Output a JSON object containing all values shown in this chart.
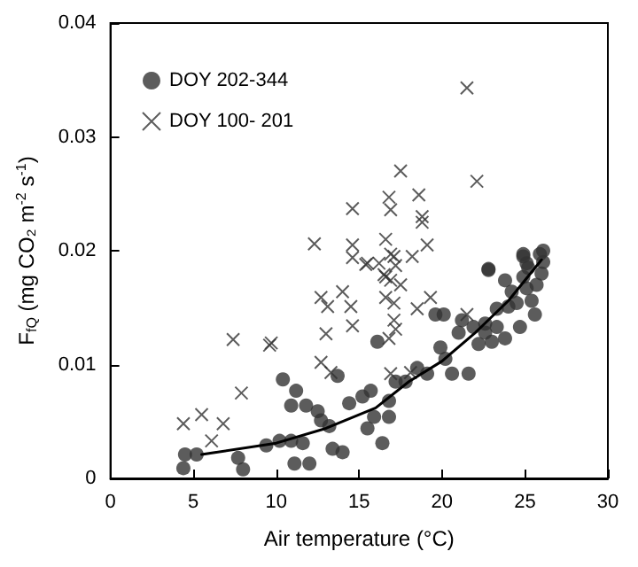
{
  "chart_data": {
    "type": "scatter",
    "xlabel": "Air temperature (°C)",
    "ylabel": "F$_{fQ}$ (mg CO₂ m$^{-2}$ s$^{-1}$)",
    "xlim": [
      0,
      30
    ],
    "xticks": [
      0,
      5,
      10,
      15,
      20,
      25,
      30
    ],
    "ylim": [
      0,
      0.04
    ],
    "yticks": [
      0,
      0.01,
      0.02,
      0.03,
      0.04
    ],
    "grid": false,
    "legend": "top left",
    "series": [
      {
        "name": "DOY 202-344",
        "color": "#333333",
        "marker": "circle",
        "x": [
          4.4,
          4.5,
          5.2,
          7.7,
          8,
          9.4,
          10.4,
          10.9,
          10.2,
          10.9,
          11.1,
          11.2,
          11.6,
          12,
          11.8,
          12.5,
          12.7,
          13.2,
          13.4,
          14,
          13.7,
          14.4,
          15.2,
          15.5,
          15.7,
          16.4,
          15.9,
          16.8,
          16.8,
          16.1,
          17.2,
          17.8,
          18.5,
          19.1,
          19.9,
          20.2,
          20.6,
          21.6,
          21,
          19.6,
          20.1,
          21.2,
          21.9,
          22.2,
          22.6,
          23,
          23.3,
          23.8,
          22.8,
          23.3,
          23.8,
          24.2,
          24.5,
          24.7,
          24.9,
          25.1,
          25.4,
          25.6,
          24.9,
          25.2,
          25.9,
          26,
          26.1,
          25.7,
          24,
          22.6,
          22.8,
          24.9,
          26.1,
          25.1
        ],
        "values": [
          0.0009,
          0.0021,
          0.0021,
          0.0018,
          0.0008,
          0.0029,
          0.0087,
          0.0064,
          0.0033,
          0.0033,
          0.0013,
          0.0077,
          0.0031,
          0.0013,
          0.0064,
          0.0059,
          0.0051,
          0.0046,
          0.0026,
          0.0023,
          0.009,
          0.0066,
          0.0072,
          0.0044,
          0.0077,
          0.0031,
          0.0054,
          0.0054,
          0.0068,
          0.012,
          0.0085,
          0.0085,
          0.0097,
          0.0092,
          0.0115,
          0.0105,
          0.0092,
          0.0092,
          0.0128,
          0.0144,
          0.0144,
          0.0139,
          0.0133,
          0.0118,
          0.0136,
          0.012,
          0.0133,
          0.0123,
          0.0184,
          0.0149,
          0.0174,
          0.0164,
          0.0154,
          0.0133,
          0.0177,
          0.0167,
          0.0156,
          0.0144,
          0.0195,
          0.0185,
          0.0197,
          0.018,
          0.019,
          0.017,
          0.0151,
          0.0128,
          0.0183,
          0.0197,
          0.02,
          0.0189
        ]
      },
      {
        "name": "DOY 100- 201",
        "color": "#333333",
        "marker": "cross",
        "x": [
          12.3,
          21.5,
          22.1,
          17.5,
          14.6,
          16.8,
          16.9,
          18.6,
          18.8,
          18.8,
          14.6,
          16.6,
          19.1,
          15.4,
          16.2,
          16.9,
          17.2,
          18.2,
          16.5,
          16.9,
          14.6,
          15.5,
          17.1,
          16.6,
          17.5,
          12.7,
          13.1,
          14,
          14.5,
          16.6,
          17.1,
          18.5,
          19.3,
          14.6,
          17.1,
          17.2,
          13,
          16.8,
          7.4,
          9.7,
          9.6,
          12.7,
          13.3,
          16.9,
          18.1,
          21.5,
          7.9,
          4.4,
          5.5,
          6.8,
          6.1
        ],
        "values": [
          0.0206,
          0.0343,
          0.0261,
          0.027,
          0.0237,
          0.0247,
          0.0236,
          0.0249,
          0.023,
          0.0225,
          0.0205,
          0.021,
          0.0205,
          0.0188,
          0.0189,
          0.0197,
          0.0187,
          0.0195,
          0.0179,
          0.0174,
          0.0194,
          0.0189,
          0.0195,
          0.0177,
          0.017,
          0.0159,
          0.0151,
          0.0164,
          0.0151,
          0.0159,
          0.0154,
          0.0149,
          0.0159,
          0.0134,
          0.0139,
          0.0131,
          0.0127,
          0.0123,
          0.0122,
          0.0119,
          0.0117,
          0.0102,
          0.0093,
          0.0092,
          0.0093,
          0.0144,
          0.0075,
          0.0048,
          0.0056,
          0.0048,
          0.0033
        ]
      },
      {
        "type": "line",
        "color": "#000000",
        "marker": "none",
        "x": [
          5.5,
          10,
          13,
          16,
          18,
          20,
          22,
          24,
          26
        ],
        "values": [
          0.0021,
          0.0031,
          0.0044,
          0.0062,
          0.0085,
          0.0103,
          0.0128,
          0.0156,
          0.0192
        ]
      }
    ]
  }
}
